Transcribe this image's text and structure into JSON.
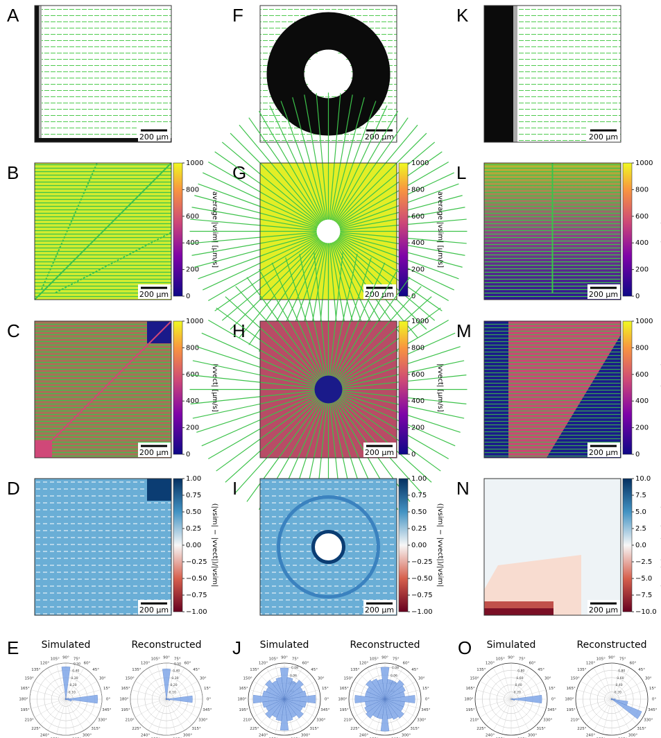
{
  "columns": [
    {
      "rows": [
        {
          "letter": "A",
          "scale_bar": "200 μm"
        },
        {
          "letter": "B",
          "scale_bar": "200 μm",
          "colorbar": {
            "ticks": [
              "1000",
              "800",
              "600",
              "400",
              "200",
              "0"
            ],
            "label": "average |vsim| [μm/s]"
          }
        },
        {
          "letter": "C",
          "scale_bar": "200 μm",
          "colorbar": {
            "ticks": [
              "1000",
              "800",
              "600",
              "400",
              "200",
              "0"
            ],
            "label": "|vvect| [μm/s]"
          }
        },
        {
          "letter": "D",
          "scale_bar": "200 μm",
          "colorbar": {
            "ticks": [
              "1.00",
              "0.75",
              "0.50",
              "0.25",
              "0.00",
              "−0.25",
              "−0.50",
              "−0.75",
              "−1.00"
            ],
            "label": "(|vsim| − |vvect|)/|vsim|"
          }
        }
      ],
      "polar": {
        "letter": "E",
        "plots": [
          {
            "title": "Simulated",
            "rlim": 0.5,
            "rticks": [
              {
                "value": 0.1,
                "label": "0.10"
              },
              {
                "value": 0.2,
                "label": "0.20"
              },
              {
                "value": 0.3,
                "label": "0.30"
              },
              {
                "value": 0.4,
                "label": "0.40"
              },
              {
                "value": 0.5,
                "label": "0.50"
              }
            ],
            "values": [
              0.44,
              0.04,
              0.01,
              0.01,
              0.01,
              0.01,
              0.45,
              0.02,
              0.01,
              0.01,
              0.01,
              0.01,
              0.01,
              0.01,
              0.01,
              0.01,
              0.01,
              0.01,
              0.01,
              0.01,
              0.01,
              0.01,
              0.01,
              0.08
            ]
          },
          {
            "title": "Reconstructed",
            "rlim": 0.5,
            "rticks": [
              {
                "value": 0.1,
                "label": "0.10"
              },
              {
                "value": 0.2,
                "label": "0.20"
              },
              {
                "value": 0.3,
                "label": "0.30"
              },
              {
                "value": 0.4,
                "label": "0.40"
              },
              {
                "value": 0.5,
                "label": "0.50"
              }
            ],
            "values": [
              0.36,
              0.03,
              0.01,
              0.01,
              0.01,
              0.01,
              0.42,
              0.02,
              0.01,
              0.01,
              0.01,
              0.01,
              0.01,
              0.01,
              0.01,
              0.01,
              0.01,
              0.01,
              0.01,
              0.01,
              0.01,
              0.01,
              0.01,
              0.05
            ]
          }
        ]
      }
    },
    {
      "rows": [
        {
          "letter": "F",
          "scale_bar": "200 μm"
        },
        {
          "letter": "G",
          "scale_bar": "200 μm",
          "colorbar": {
            "ticks": [
              "1000",
              "800",
              "600",
              "400",
              "200",
              "0"
            ],
            "label": "average |vsim| [μm/s]"
          }
        },
        {
          "letter": "H",
          "scale_bar": "200 μm",
          "colorbar": {
            "ticks": [
              "1000",
              "800",
              "600",
              "400",
              "200",
              "0"
            ],
            "label": "|vvect| [μm/s]"
          }
        },
        {
          "letter": "I",
          "scale_bar": "200 μm",
          "colorbar": {
            "ticks": [
              "1.00",
              "0.75",
              "0.50",
              "0.25",
              "0.00",
              "−0.25",
              "−0.50",
              "−0.75",
              "−1.00"
            ],
            "label": "(|vsim| − |vvect|)/|vsim|"
          }
        }
      ],
      "polar": {
        "letter": "J",
        "plots": [
          {
            "title": "Simulated",
            "rlim": 0.09,
            "rticks": [
              {
                "value": 0.02,
                "label": "0.02"
              },
              {
                "value": 0.04,
                "label": "0.04"
              },
              {
                "value": 0.06,
                "label": "0.06"
              },
              {
                "value": 0.08,
                "label": "0.08"
              }
            ],
            "values": [
              0.078,
              0.055,
              0.05,
              0.06,
              0.05,
              0.055,
              0.078,
              0.055,
              0.05,
              0.06,
              0.05,
              0.055,
              0.078,
              0.055,
              0.05,
              0.06,
              0.05,
              0.055,
              0.078,
              0.055,
              0.05,
              0.06,
              0.05,
              0.055
            ]
          },
          {
            "title": "Reconstructed",
            "rlim": 0.09,
            "rticks": [
              {
                "value": 0.02,
                "label": "0.02"
              },
              {
                "value": 0.04,
                "label": "0.04"
              },
              {
                "value": 0.06,
                "label": "0.06"
              },
              {
                "value": 0.08,
                "label": "0.08"
              }
            ],
            "values": [
              0.075,
              0.05,
              0.055,
              0.06,
              0.05,
              0.05,
              0.08,
              0.05,
              0.055,
              0.06,
              0.05,
              0.05,
              0.075,
              0.05,
              0.055,
              0.06,
              0.05,
              0.05,
              0.08,
              0.05,
              0.055,
              0.06,
              0.05,
              0.05
            ]
          }
        ]
      }
    },
    {
      "rows": [
        {
          "letter": "K",
          "scale_bar": "200 μm"
        },
        {
          "letter": "L",
          "scale_bar": "200 μm",
          "colorbar": {
            "ticks": [
              "1000",
              "800",
              "600",
              "400",
              "200",
              "0"
            ],
            "label": "average |vsim| [μm/s]"
          }
        },
        {
          "letter": "M",
          "scale_bar": "200 μm",
          "colorbar": {
            "ticks": [
              "1000",
              "800",
              "600",
              "400",
              "200",
              "0"
            ],
            "label": "|vvect| [μm/s]"
          }
        },
        {
          "letter": "N",
          "scale_bar": "200 μm",
          "colorbar": {
            "ticks": [
              "10.0",
              "7.5",
              "5.0",
              "2.5",
              "0.0",
              "−2.5",
              "−5.0",
              "−7.5",
              "−10.0"
            ],
            "label": "(|vsim| − |vvect|)/|vsim|"
          }
        }
      ],
      "polar": {
        "letter": "O",
        "plots": [
          {
            "title": "Simulated",
            "rlim": 1.0,
            "rticks": [
              {
                "value": 0.2,
                "label": "0.20"
              },
              {
                "value": 0.4,
                "label": "0.40"
              },
              {
                "value": 0.6,
                "label": "0.60"
              },
              {
                "value": 0.8,
                "label": "0.80"
              }
            ],
            "values": [
              0.85,
              0.05,
              0.01,
              0.01,
              0.01,
              0.01,
              0.01,
              0.01,
              0.01,
              0.01,
              0.01,
              0.01,
              0.01,
              0.01,
              0.01,
              0.01,
              0.01,
              0.01,
              0.01,
              0.01,
              0.01,
              0.01,
              0.01,
              0.1
            ]
          },
          {
            "title": "Reconstructed",
            "rlim": 1.0,
            "rticks": [
              {
                "value": 0.2,
                "label": "0.20"
              },
              {
                "value": 0.4,
                "label": "0.40"
              },
              {
                "value": 0.6,
                "label": "0.60"
              },
              {
                "value": 0.8,
                "label": "0.80"
              }
            ],
            "values": [
              0.1,
              0.02,
              0.02,
              0.02,
              0.02,
              0.02,
              0.02,
              0.02,
              0.02,
              0.02,
              0.02,
              0.02,
              0.02,
              0.02,
              0.02,
              0.02,
              0.02,
              0.02,
              0.02,
              0.02,
              0.02,
              0.02,
              0.9,
              0.45
            ]
          }
        ]
      }
    }
  ],
  "angle_labels": [
    "0°",
    "15°",
    "30°",
    "45°",
    "60°",
    "75°",
    "90°",
    "105°",
    "120°",
    "135°",
    "150°",
    "165°",
    "180°",
    "195°",
    "210°",
    "225°",
    "240°",
    "255°",
    "270°",
    "285°",
    "300°",
    "315°",
    "330°",
    "345°"
  ]
}
